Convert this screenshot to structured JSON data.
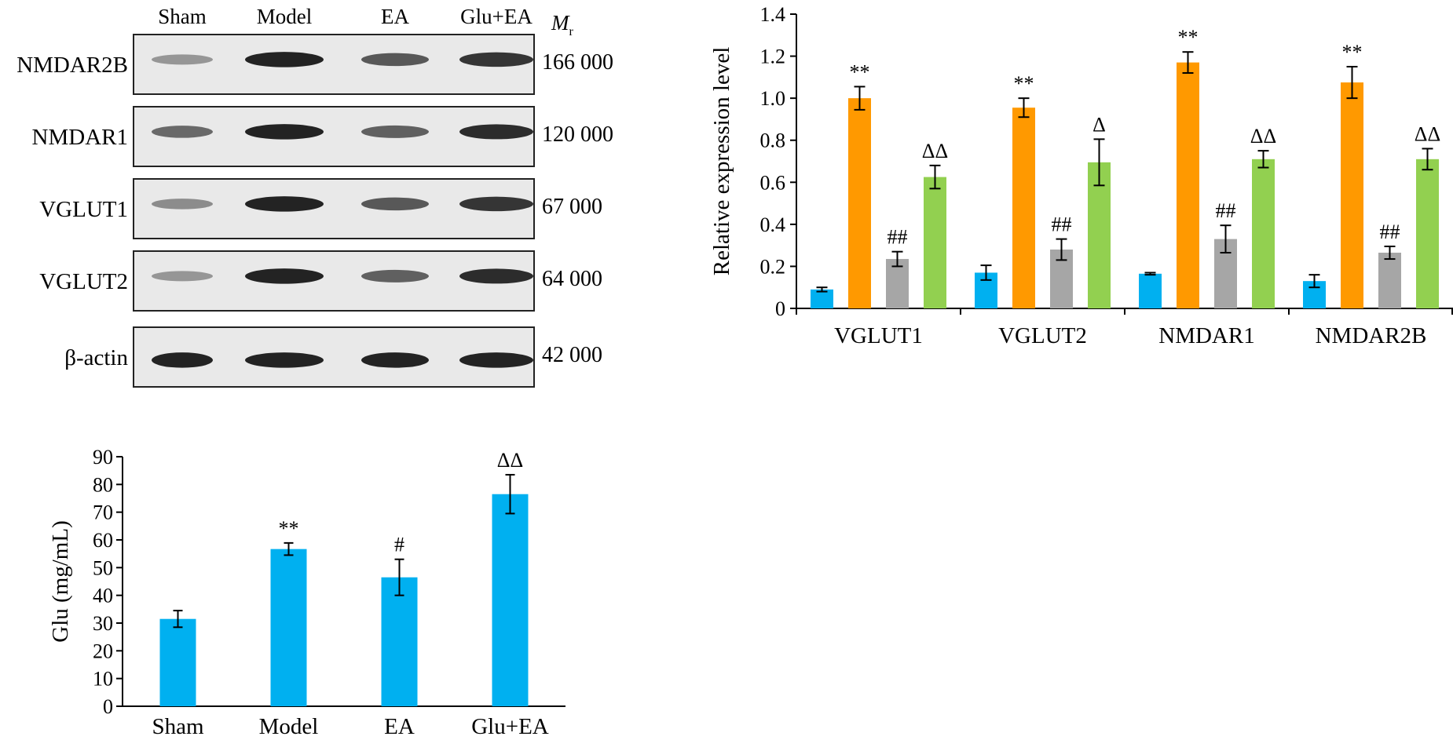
{
  "blot": {
    "lanes": [
      "Sham",
      "Model",
      "EA",
      "Glu+EA"
    ],
    "mr_label": "M",
    "mr_sub": "r",
    "rows": [
      {
        "protein": "NMDAR2B",
        "mr": "166 000",
        "intensity": [
          0.3,
          0.95,
          0.65,
          0.85
        ]
      },
      {
        "protein": "NMDAR1",
        "mr": "120 000",
        "intensity": [
          0.55,
          0.95,
          0.6,
          0.9
        ]
      },
      {
        "protein": "VGLUT1",
        "mr": "67 000",
        "intensity": [
          0.35,
          0.95,
          0.65,
          0.85
        ]
      },
      {
        "protein": "VGLUT2",
        "mr": "64 000",
        "intensity": [
          0.3,
          0.95,
          0.6,
          0.9
        ]
      },
      {
        "protein": "β-actin",
        "mr": "42 000",
        "intensity": [
          0.95,
          0.95,
          0.95,
          0.95
        ]
      }
    ]
  },
  "chart_data": [
    {
      "type": "bar",
      "categories": [
        "VGLUT1",
        "VGLUT2",
        "NMDAR1",
        "NMDAR2B"
      ],
      "ylabel": "Relative expression level",
      "ylim": [
        0,
        1.4
      ],
      "yticks": [
        "0",
        "0.2",
        "0.4",
        "0.6",
        "0.8",
        "1.0",
        "1.2",
        "1.4"
      ],
      "series": [
        {
          "color": "#00b0f0",
          "values": [
            0.09,
            0.17,
            0.165,
            0.13
          ],
          "errors": [
            0.01,
            0.035,
            0.005,
            0.03
          ],
          "marks": [
            "",
            "",
            "",
            ""
          ]
        },
        {
          "color": "#ff9900",
          "values": [
            1.0,
            0.955,
            1.17,
            1.075
          ],
          "errors": [
            0.055,
            0.045,
            0.05,
            0.075
          ],
          "marks": [
            "**",
            "**",
            "**",
            "**"
          ]
        },
        {
          "color": "#a6a6a6",
          "values": [
            0.235,
            0.28,
            0.33,
            0.265
          ],
          "errors": [
            0.035,
            0.05,
            0.065,
            0.03
          ],
          "marks": [
            "##",
            "##",
            "##",
            "##"
          ]
        },
        {
          "color": "#92d050",
          "values": [
            0.625,
            0.695,
            0.71,
            0.71
          ],
          "errors": [
            0.055,
            0.11,
            0.04,
            0.05
          ],
          "marks": [
            "ΔΔ",
            "Δ",
            "ΔΔ",
            "ΔΔ"
          ]
        }
      ],
      "grid": false
    },
    {
      "type": "bar",
      "categories": [
        "Sham",
        "Model",
        "EA",
        "Glu+EA"
      ],
      "ylabel": "Glu (mg/mL)",
      "ylim": [
        0,
        90
      ],
      "yticks": [
        "0",
        "10",
        "20",
        "30",
        "40",
        "50",
        "60",
        "70",
        "80",
        "90"
      ],
      "color": "#00b0f0",
      "values": [
        31.5,
        56.7,
        46.5,
        76.5
      ],
      "errors": [
        3.0,
        2.2,
        6.5,
        7.0
      ],
      "marks": [
        "",
        "**",
        "#",
        "ΔΔ"
      ],
      "grid": false
    }
  ]
}
